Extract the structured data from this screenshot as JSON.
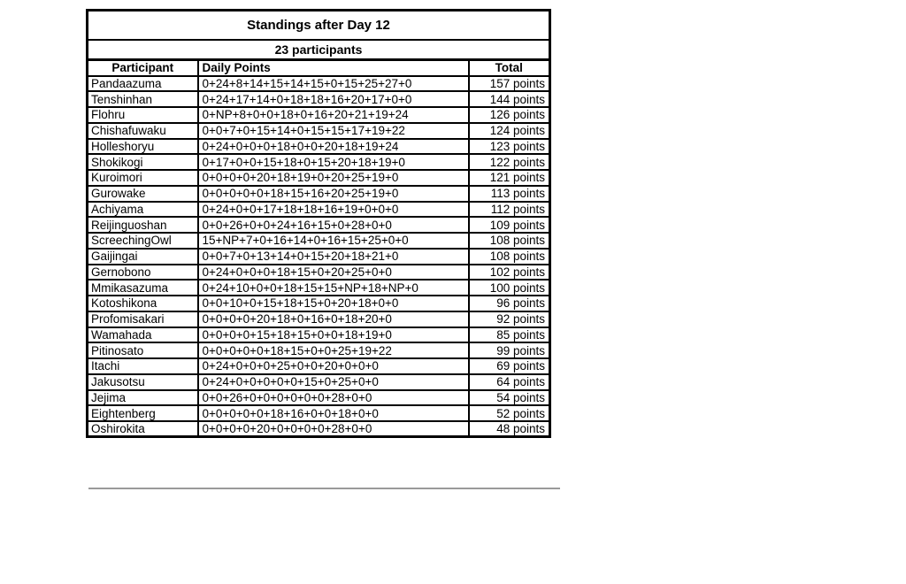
{
  "page": {
    "background": "#ffffff"
  },
  "standings": {
    "title": "Standings after Day 12",
    "subtitle": "23 participants",
    "columns": [
      "Participant",
      "Daily Points",
      "Total"
    ],
    "rows": [
      {
        "participant": "Pandaazuma",
        "daily_points": "0+24+8+14+15+14+15+0+15+25+27+0",
        "total": "157 points"
      },
      {
        "participant": "Tenshinhan",
        "daily_points": "0+24+17+14+0+18+18+16+20+17+0+0",
        "total": "144 points"
      },
      {
        "participant": "Flohru",
        "daily_points": "0+NP+8+0+0+18+0+16+20+21+19+24",
        "total": "126 points"
      },
      {
        "participant": "Chishafuwaku",
        "daily_points": "0+0+7+0+15+14+0+15+15+17+19+22",
        "total": "124 points"
      },
      {
        "participant": "Holleshoryu",
        "daily_points": "0+24+0+0+0+18+0+0+20+18+19+24",
        "total": "123 points"
      },
      {
        "participant": "Shokikogi",
        "daily_points": "0+17+0+0+15+18+0+15+20+18+19+0",
        "total": "122 points"
      },
      {
        "participant": "Kuroimori",
        "daily_points": "0+0+0+0+20+18+19+0+20+25+19+0",
        "total": "121 points"
      },
      {
        "participant": "Gurowake",
        "daily_points": "0+0+0+0+0+18+15+16+20+25+19+0",
        "total": "113 points"
      },
      {
        "participant": "Achiyama",
        "daily_points": "0+24+0+0+17+18+18+16+19+0+0+0",
        "total": "112 points"
      },
      {
        "participant": "Reijinguoshan",
        "daily_points": "0+0+26+0+0+24+16+15+0+28+0+0",
        "total": "109 points"
      },
      {
        "participant": "ScreechingOwl",
        "daily_points": "15+NP+7+0+16+14+0+16+15+25+0+0",
        "total": "108 points"
      },
      {
        "participant": "Gaijingai",
        "daily_points": "0+0+7+0+13+14+0+15+20+18+21+0",
        "total": "108 points"
      },
      {
        "participant": "Gernobono",
        "daily_points": "0+24+0+0+0+18+15+0+20+25+0+0",
        "total": "102 points"
      },
      {
        "participant": "Mmikasazuma",
        "daily_points": "0+24+10+0+0+18+15+15+NP+18+NP+0",
        "total": "100 points"
      },
      {
        "participant": "Kotoshikona",
        "daily_points": "0+0+10+0+15+18+15+0+20+18+0+0",
        "total": "96 points"
      },
      {
        "participant": "Profomisakari",
        "daily_points": "0+0+0+0+20+18+0+16+0+18+20+0",
        "total": "92 points"
      },
      {
        "participant": "Wamahada",
        "daily_points": "0+0+0+0+15+18+15+0+0+18+19+0",
        "total": "85 points"
      },
      {
        "participant": "Pitinosato",
        "daily_points": "0+0+0+0+0+18+15+0+0+25+19+22",
        "total": "99 points"
      },
      {
        "participant": "Itachi",
        "daily_points": "0+24+0+0+0+25+0+0+20+0+0+0",
        "total": "69 points"
      },
      {
        "participant": "Jakusotsu",
        "daily_points": "0+24+0+0+0+0+0+15+0+25+0+0",
        "total": "64 points"
      },
      {
        "participant": "Jejima",
        "daily_points": "0+0+26+0+0+0+0+0+0+28+0+0",
        "total": "54 points"
      },
      {
        "participant": "Eightenberg",
        "daily_points": "0+0+0+0+0+18+16+0+0+18+0+0",
        "total": "52 points"
      },
      {
        "participant": "Oshirokita",
        "daily_points": "0+0+0+0+20+0+0+0+0+28+0+0",
        "total": "48 points"
      }
    ],
    "colors": {
      "border": "#000000",
      "text": "#000000",
      "background": "#ffffff",
      "shadow": "#9a9a9a"
    }
  }
}
